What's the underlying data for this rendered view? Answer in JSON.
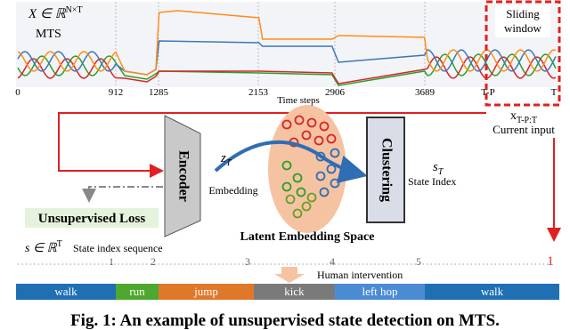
{
  "figure": {
    "series_panel": {
      "variable": "X ∈ ℝ",
      "superscript": "N×T",
      "label": "MTS",
      "ticks": [
        "0",
        "912",
        "1285",
        "2153",
        "2906",
        "3689",
        "T-P",
        "T"
      ],
      "axis_label": "Time steps",
      "window_label": [
        "Sliding",
        "window"
      ]
    },
    "current_input": {
      "symbol": "x",
      "subscript": "T-P:T",
      "label": "Current input"
    },
    "encoder": "Encoder",
    "embedding": {
      "symbol": "z",
      "subscript": "T",
      "label": "Embedding"
    },
    "clustering": "Clustering",
    "state": {
      "symbol": "s",
      "subscript": "T",
      "label": "State Index"
    },
    "loss": "Unsupervised Loss",
    "latent_space": "Latent Embedding Space",
    "sequence": {
      "variable": "s ∈ ℝ",
      "superscript": "T",
      "label": "State index sequence",
      "states": [
        "1",
        "2",
        "3",
        "4",
        "5",
        "1"
      ]
    },
    "intervention": "Human intervention",
    "segments": [
      "walk",
      "run",
      "jump",
      "kick",
      "left hop",
      "walk"
    ],
    "caption": "Fig. 1: An example of unsupervised state detection on MTS."
  }
}
